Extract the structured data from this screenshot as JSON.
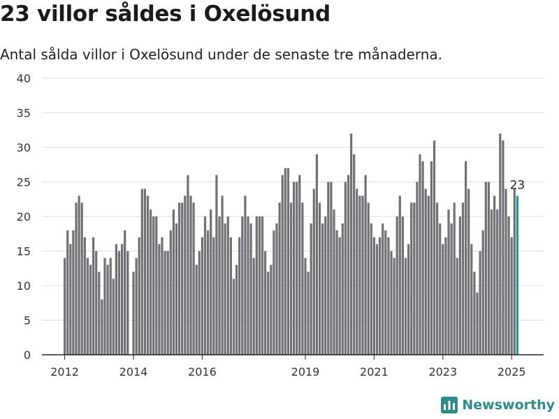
{
  "header": {
    "title": "23 villor såldes i Oxelösund",
    "subtitle": "Antal sålda villor i Oxelösund under de senaste tre månaderna."
  },
  "brand": {
    "name": "Newsworthy",
    "color": "#2e8b89"
  },
  "colors": {
    "bar": "#707074",
    "highlight": "#1a9b95",
    "grid": "#dcdcdc",
    "axis": "#333333"
  },
  "chart_data": {
    "type": "bar",
    "title": "23 villor såldes i Oxelösund",
    "subtitle": "Antal sålda villor i Oxelösund under de senaste tre månaderna.",
    "xlabel": "",
    "ylabel": "",
    "ylim": [
      0,
      40
    ],
    "yticks": [
      0,
      5,
      10,
      15,
      20,
      25,
      30,
      35,
      40
    ],
    "xticks": [
      "2012",
      "2014",
      "2016",
      "2019",
      "2021",
      "2023",
      "2025"
    ],
    "grid": true,
    "start": "2012-01",
    "frequency": "monthly",
    "values": [
      14,
      18,
      16,
      18,
      22,
      23,
      22,
      17,
      14,
      13,
      17,
      15,
      12,
      8,
      14,
      13,
      14,
      11,
      16,
      15,
      16,
      18,
      15,
      0,
      12,
      14,
      17,
      24,
      24,
      23,
      21,
      20,
      20,
      16,
      17,
      15,
      15,
      18,
      21,
      19,
      22,
      22,
      23,
      26,
      23,
      22,
      13,
      15,
      17,
      20,
      18,
      21,
      17,
      26,
      20,
      23,
      19,
      20,
      17,
      11,
      13,
      17,
      20,
      23,
      20,
      19,
      14,
      20,
      20,
      20,
      15,
      12,
      13,
      18,
      19,
      22,
      26,
      27,
      27,
      22,
      25,
      25,
      26,
      22,
      14,
      12,
      19,
      24,
      29,
      22,
      19,
      20,
      25,
      25,
      21,
      18,
      17,
      19,
      25,
      26,
      32,
      29,
      24,
      23,
      23,
      26,
      22,
      19,
      17,
      16,
      17,
      19,
      18,
      17,
      15,
      14,
      20,
      23,
      20,
      14,
      16,
      22,
      22,
      25,
      29,
      28,
      24,
      23,
      28,
      31,
      22,
      19,
      16,
      17,
      21,
      19,
      22,
      14,
      20,
      22,
      28,
      24,
      16,
      12,
      9,
      15,
      18,
      25,
      25,
      21,
      23,
      21,
      32,
      31,
      24,
      20,
      17,
      24,
      23
    ],
    "highlight_last": true,
    "annotations": [
      {
        "text": "23",
        "target": "last"
      }
    ]
  }
}
